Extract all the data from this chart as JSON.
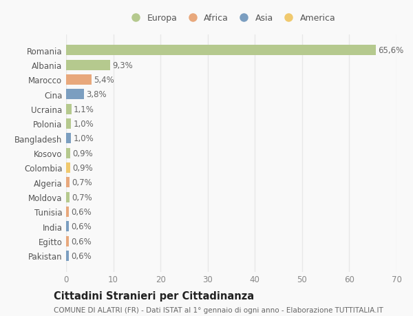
{
  "countries": [
    "Romania",
    "Albania",
    "Marocco",
    "Cina",
    "Ucraina",
    "Polonia",
    "Bangladesh",
    "Kosovo",
    "Colombia",
    "Algeria",
    "Moldova",
    "Tunisia",
    "India",
    "Egitto",
    "Pakistan"
  ],
  "values": [
    65.6,
    9.3,
    5.4,
    3.8,
    1.1,
    1.0,
    1.0,
    0.9,
    0.9,
    0.7,
    0.7,
    0.6,
    0.6,
    0.6,
    0.6
  ],
  "labels": [
    "65,6%",
    "9,3%",
    "5,4%",
    "3,8%",
    "1,1%",
    "1,0%",
    "1,0%",
    "0,9%",
    "0,9%",
    "0,7%",
    "0,7%",
    "0,6%",
    "0,6%",
    "0,6%",
    "0,6%"
  ],
  "continents": [
    "Europa",
    "Europa",
    "Africa",
    "Asia",
    "Europa",
    "Europa",
    "Asia",
    "Europa",
    "America",
    "Africa",
    "Europa",
    "Africa",
    "Asia",
    "Africa",
    "Asia"
  ],
  "continent_colors": {
    "Europa": "#b5c98e",
    "Africa": "#e8a87c",
    "Asia": "#7b9ec0",
    "America": "#f0c96e"
  },
  "legend_items": [
    "Europa",
    "Africa",
    "Asia",
    "America"
  ],
  "xlim": [
    0,
    70
  ],
  "xticks": [
    0,
    10,
    20,
    30,
    40,
    50,
    60,
    70
  ],
  "title_main": "Cittadini Stranieri per Cittadinanza",
  "title_sub": "COMUNE DI ALATRI (FR) - Dati ISTAT al 1° gennaio di ogni anno - Elaborazione TUTTITALIA.IT",
  "bg_color": "#f9f9f9",
  "grid_color": "#e8e8e8",
  "bar_height": 0.7,
  "label_fontsize": 8.5,
  "tick_fontsize": 8.5,
  "ytick_fontsize": 8.5,
  "title_fontsize": 10.5,
  "subtitle_fontsize": 7.5
}
